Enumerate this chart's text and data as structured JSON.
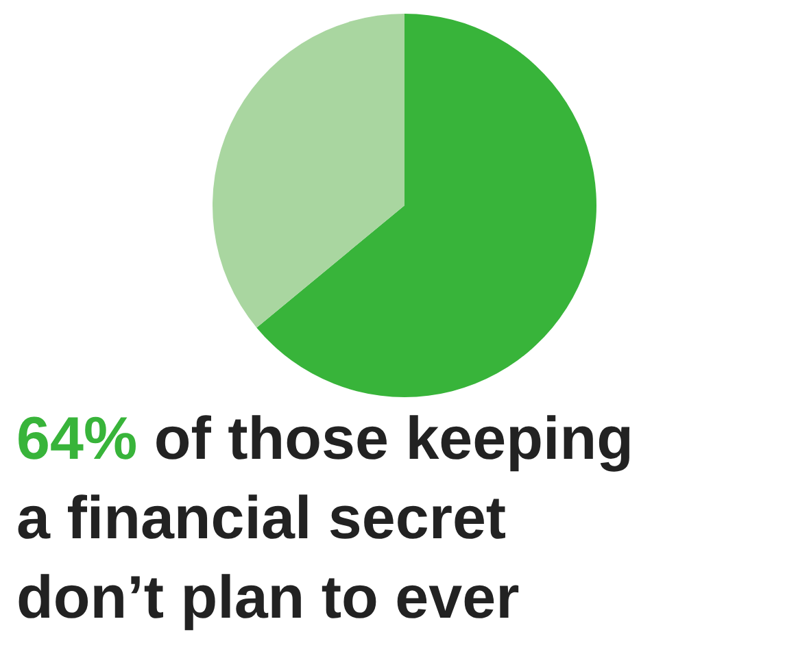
{
  "chart_data": {
    "type": "pie",
    "title": "64% of those keeping a financial secret don’t plan to ever",
    "categories": [
      null,
      null
    ],
    "values": [
      64,
      36
    ],
    "colors": [
      "#38b43a",
      "#a9d6a0"
    ]
  }
}
